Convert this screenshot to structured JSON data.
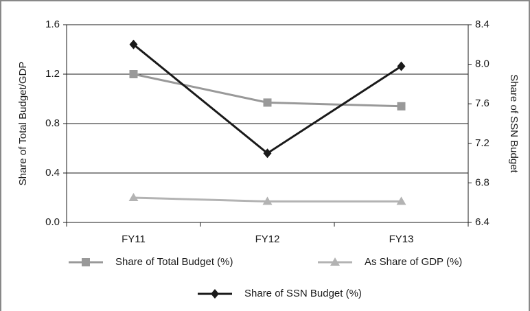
{
  "chart_data": {
    "type": "line",
    "categories": [
      "FY11",
      "FY12",
      "FY13"
    ],
    "ylabel": "Share of Total Budget/GDP",
    "y2label": "Share of SSN Budget",
    "ylim": [
      0,
      1.6
    ],
    "yticks": [
      {
        "value": 0,
        "label": "0.0"
      },
      0.4,
      0.8,
      1.2,
      1.6
    ],
    "y2lim": [
      6.4,
      8.4
    ],
    "y2ticks": [
      6.4,
      6.8,
      7.2,
      7.6,
      {
        "value": 8,
        "label": "8.0"
      },
      8.4
    ],
    "grid": true,
    "legend": "bottom",
    "series": [
      {
        "name": "Share of Total Budget (%)",
        "color": "#999999",
        "marker": "square",
        "values": [
          1.2,
          0.97,
          0.94
        ]
      },
      {
        "name": "As Share of GDP (%)",
        "color": "#b3b3b3",
        "marker": "triangle",
        "values": [
          0.2,
          0.17,
          0.17
        ]
      },
      {
        "name": "Share of SSN Budget (%)",
        "color": "#1a1a1a",
        "marker": "diamond",
        "axis": "y2",
        "values": [
          8.2,
          7.1,
          7.98
        ]
      }
    ]
  }
}
